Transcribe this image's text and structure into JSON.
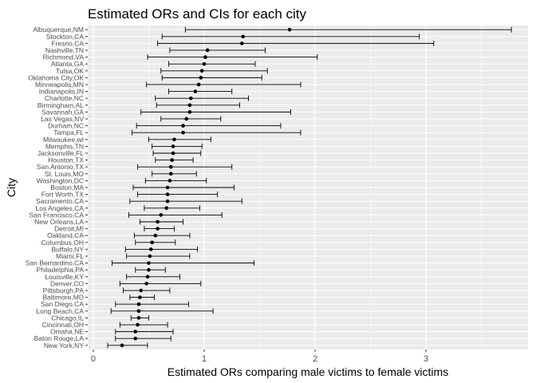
{
  "chart_data": {
    "type": "scatter",
    "title": "Estimated ORs and CIs for each city",
    "xlabel": "Estimated ORs comparing male victims to female victims",
    "ylabel": "City",
    "xlim": [
      -0.05,
      3.92
    ],
    "xticks": [
      0,
      1,
      2,
      3
    ],
    "grid": true,
    "theme": {
      "panel_bg": "#ebebeb",
      "grid_major": "#ffffff",
      "point_color": "#000000"
    },
    "cities": [
      "Albuquerque,NM",
      "Stockton,CA",
      "Fresno,CA",
      "Nashville,TN",
      "Richmond,VA",
      "Atlanta,GA",
      "Tulsa,OK",
      "Oklahoma City,OK",
      "Minneapolis,MN",
      "Indianapolis,IN",
      "Charlotte,NC",
      "Birmingham,AL",
      "Savannah,GA",
      "Las Vegas,NV",
      "Durham,NC",
      "Tampa,FL",
      "Milwaukee,wI",
      "Memphis,TN",
      "Jacksonville,FL",
      "Houston,TX",
      "San Antonio,TX",
      "St. Louis,MO",
      "Washington,DC",
      "Boston,MA",
      "Fort Worth,TX",
      "Sacramento,CA",
      "Los Angeles,CA",
      "San Francisco,CA",
      "New Orleans,LA",
      "Detroit,MI",
      "Oakland,CA",
      "Columbus,OH",
      "Buffalo,NY",
      "Miami,FL",
      "San Bernardino,CA",
      "Philadelphia,PA",
      "Louisville,KY",
      "Denver,CO",
      "Pittsburgh,PA",
      "Baltimore,MD",
      "San Diego,CA",
      "Long Beach,CA",
      "Chicago,IL",
      "Cincinnati,OH",
      "Omaha,NE",
      "Baton Rouge,LA",
      "New York,NY"
    ],
    "or": [
      1.77,
      1.35,
      1.34,
      1.03,
      1.01,
      1.0,
      0.98,
      0.97,
      0.95,
      0.92,
      0.88,
      0.87,
      0.87,
      0.84,
      0.81,
      0.81,
      0.73,
      0.72,
      0.72,
      0.71,
      0.7,
      0.7,
      0.69,
      0.67,
      0.67,
      0.67,
      0.66,
      0.61,
      0.58,
      0.58,
      0.56,
      0.53,
      0.52,
      0.51,
      0.5,
      0.5,
      0.49,
      0.48,
      0.43,
      0.42,
      0.41,
      0.41,
      0.41,
      0.4,
      0.38,
      0.38,
      0.26
    ],
    "ci_low": [
      0.83,
      0.62,
      0.58,
      0.69,
      0.49,
      0.68,
      0.61,
      0.62,
      0.48,
      0.68,
      0.56,
      0.57,
      0.43,
      0.61,
      0.39,
      0.35,
      0.5,
      0.53,
      0.54,
      0.56,
      0.4,
      0.53,
      0.47,
      0.36,
      0.4,
      0.33,
      0.46,
      0.32,
      0.42,
      0.46,
      0.37,
      0.38,
      0.29,
      0.3,
      0.17,
      0.38,
      0.3,
      0.24,
      0.27,
      0.33,
      0.2,
      0.16,
      0.34,
      0.24,
      0.2,
      0.2,
      0.13
    ],
    "ci_high": [
      3.77,
      2.94,
      3.07,
      1.55,
      2.02,
      1.46,
      1.57,
      1.52,
      1.87,
      1.25,
      1.4,
      1.32,
      1.78,
      1.15,
      1.69,
      1.87,
      1.06,
      0.98,
      0.97,
      0.9,
      1.25,
      0.93,
      1.02,
      1.27,
      1.12,
      1.34,
      0.96,
      1.16,
      0.81,
      0.73,
      0.87,
      0.74,
      0.94,
      0.87,
      1.45,
      0.65,
      0.78,
      0.97,
      0.69,
      0.55,
      0.86,
      1.08,
      0.5,
      0.67,
      0.72,
      0.7,
      0.49
    ]
  }
}
